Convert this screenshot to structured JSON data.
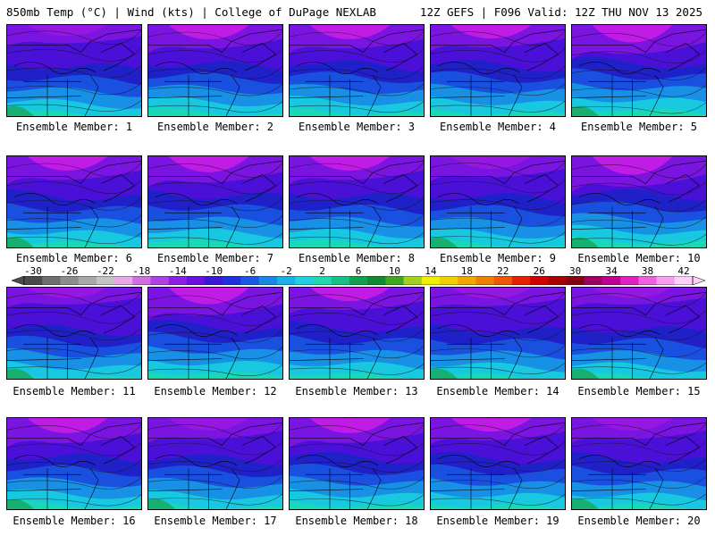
{
  "header": {
    "title_left": "850mb Temp (°C) | Wind (kts) | College of DuPage NEXLAB",
    "title_right": "12Z GEFS | F096 Valid: 12Z THU NOV 13 2025"
  },
  "panels": [
    {
      "label": "Ensemble Member: 1",
      "cold_level": 0.35
    },
    {
      "label": "Ensemble Member: 2",
      "cold_level": 0.55
    },
    {
      "label": "Ensemble Member: 3",
      "cold_level": 0.55
    },
    {
      "label": "Ensemble Member: 4",
      "cold_level": 0.5
    },
    {
      "label": "Ensemble Member: 5",
      "cold_level": 0.75
    },
    {
      "label": "Ensemble Member: 6",
      "cold_level": 0.55
    },
    {
      "label": "Ensemble Member: 7",
      "cold_level": 0.65
    },
    {
      "label": "Ensemble Member: 8",
      "cold_level": 0.55
    },
    {
      "label": "Ensemble Member: 9",
      "cold_level": 0.45
    },
    {
      "label": "Ensemble Member: 10",
      "cold_level": 0.8
    },
    {
      "label": "Ensemble Member: 11",
      "cold_level": 0.3
    },
    {
      "label": "Ensemble Member: 12",
      "cold_level": 0.7
    },
    {
      "label": "Ensemble Member: 13",
      "cold_level": 0.5
    },
    {
      "label": "Ensemble Member: 14",
      "cold_level": 0.35
    },
    {
      "label": "Ensemble Member: 15",
      "cold_level": 0.3
    },
    {
      "label": "Ensemble Member: 16",
      "cold_level": 0.6
    },
    {
      "label": "Ensemble Member: 17",
      "cold_level": 0.45
    },
    {
      "label": "Ensemble Member: 18",
      "cold_level": 0.6
    },
    {
      "label": "Ensemble Member: 19",
      "cold_level": 0.5
    },
    {
      "label": "Ensemble Member: 20",
      "cold_level": 0.45
    }
  ],
  "colorbar": {
    "labels": [
      "-30",
      "-26",
      "-22",
      "-18",
      "-14",
      "-10",
      "-6",
      "-2",
      "2",
      "6",
      "10",
      "14",
      "18",
      "22",
      "26",
      "30",
      "34",
      "38",
      "42"
    ],
    "colors": [
      "#4a4a4a",
      "#6e6e6e",
      "#8c8c8c",
      "#a8a8a8",
      "#c4c4c4",
      "#e6a8e6",
      "#d070e0",
      "#b040e6",
      "#8a20e6",
      "#6a10e0",
      "#3a1ad8",
      "#2030e0",
      "#1a58e6",
      "#1888e6",
      "#18b0e6",
      "#20d0e0",
      "#20d8b0",
      "#18c088",
      "#10a050",
      "#108a30",
      "#40a820",
      "#a0d020",
      "#f0f000",
      "#f0d000",
      "#f0a800",
      "#f08000",
      "#f05800",
      "#e82000",
      "#d00000",
      "#a80000",
      "#880010",
      "#a00060",
      "#c00090",
      "#e020c0",
      "#f060e0",
      "#f8a0f0",
      "#ffd0f8"
    ]
  },
  "palette": {
    "magenta": "#c01ce6",
    "purple": "#7a14e0",
    "violet": "#4a10d8",
    "blue": "#2020c8",
    "mid_blue": "#1a50e0",
    "light_blue": "#1890e6",
    "cyan": "#18c8e0",
    "teal": "#18d8b8",
    "green": "#18b070"
  }
}
